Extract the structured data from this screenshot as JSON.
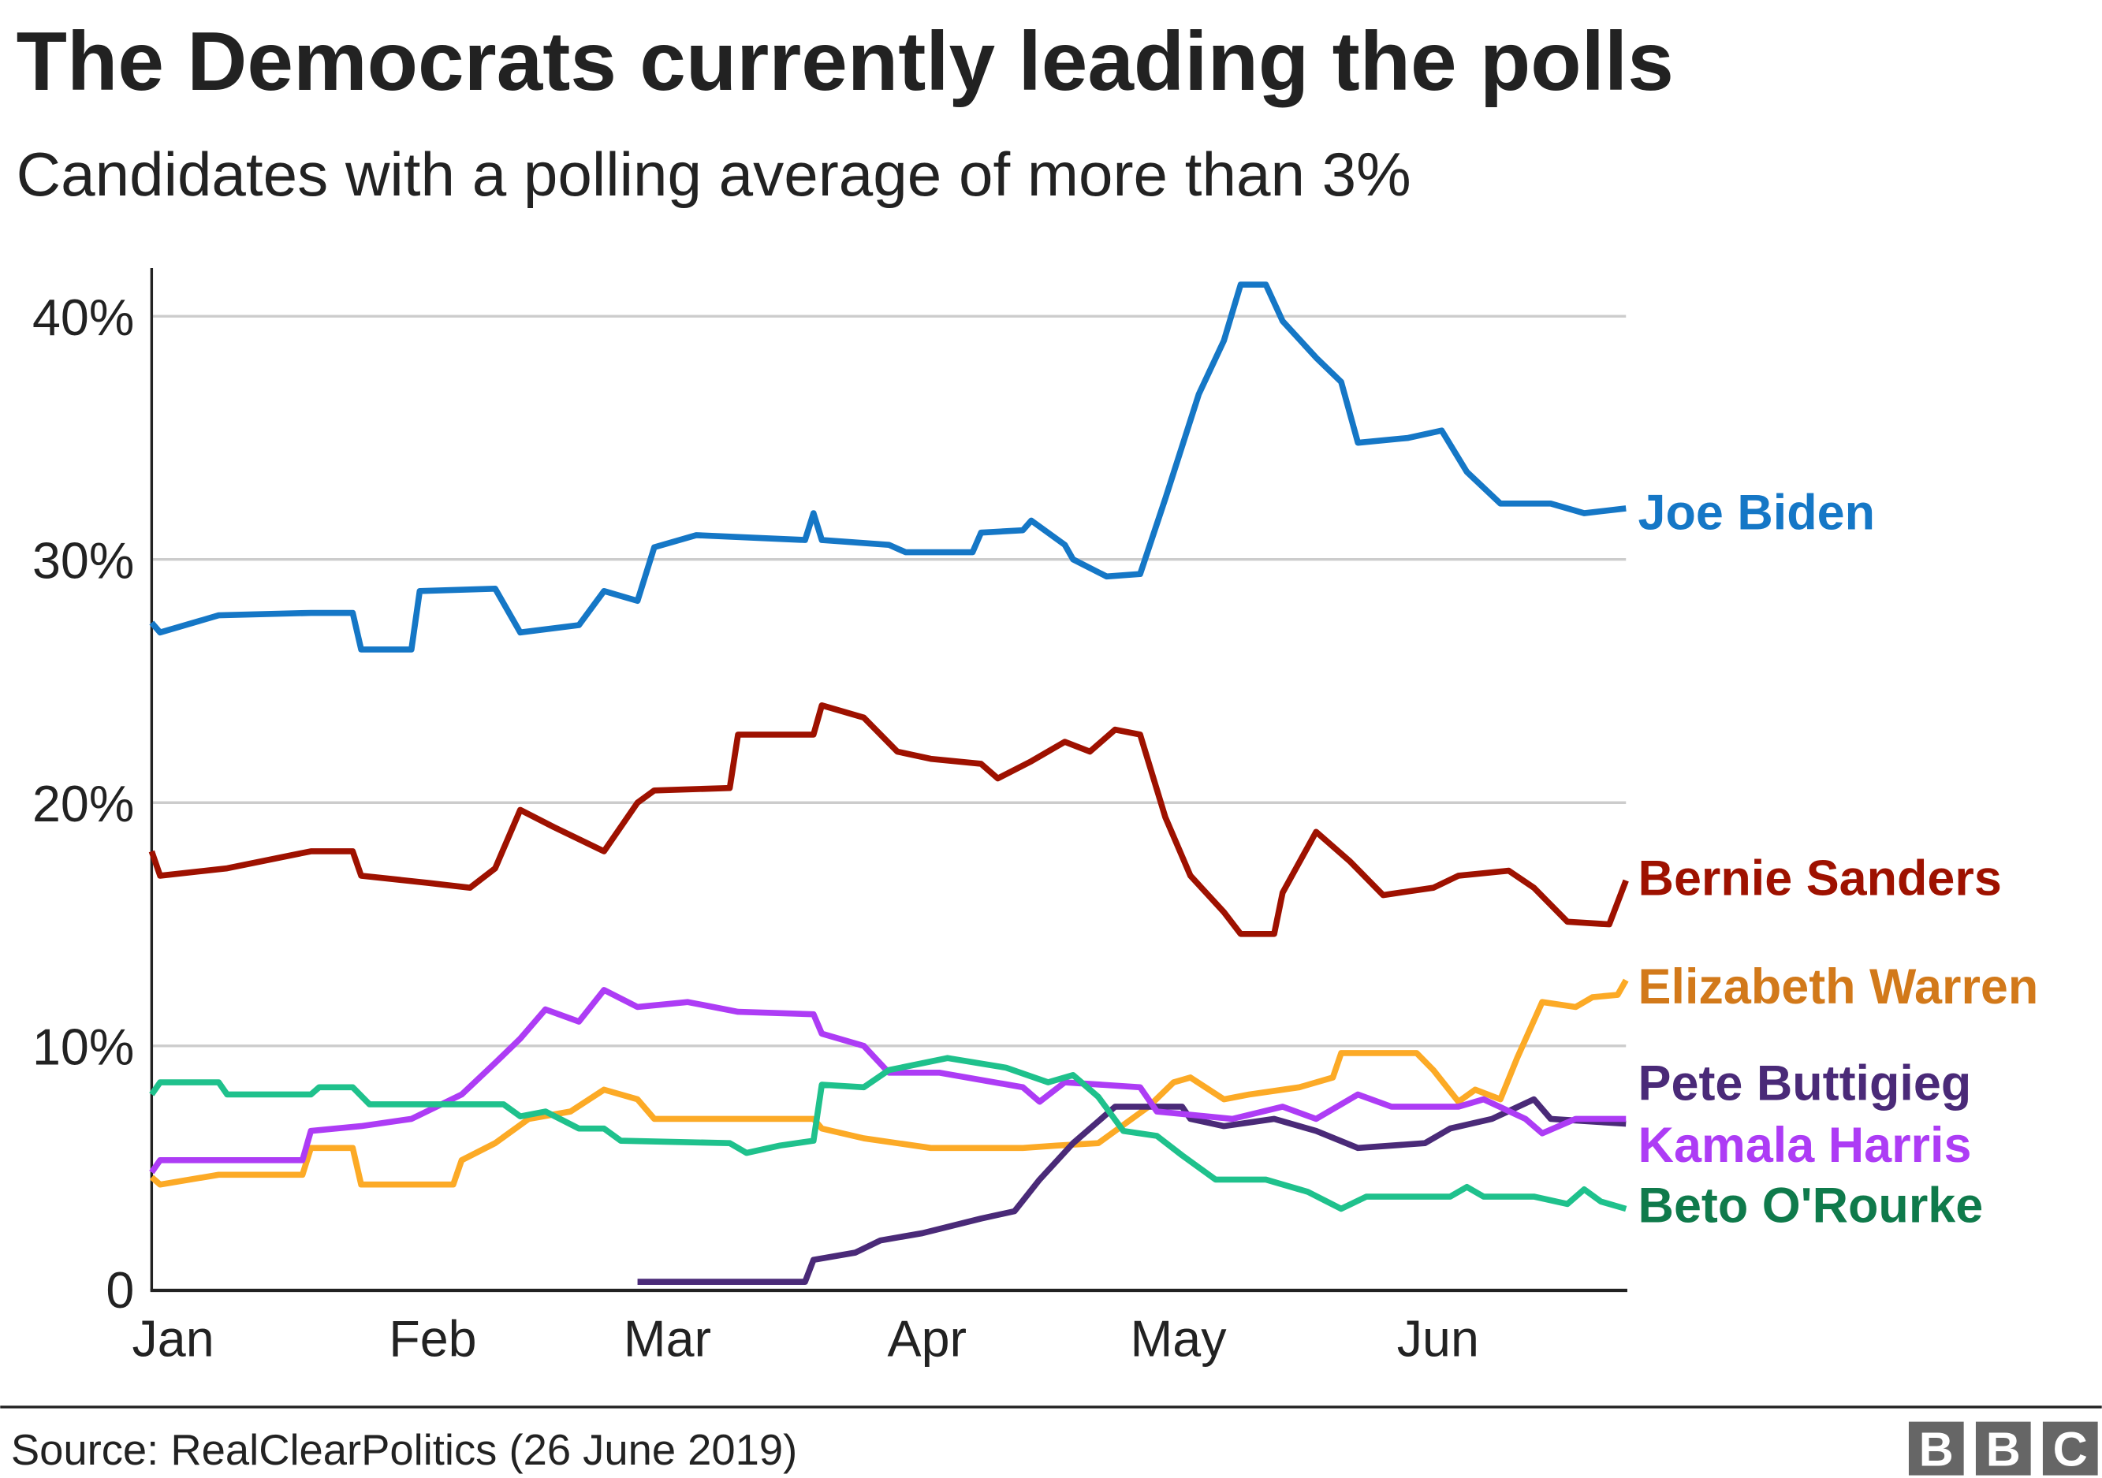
{
  "chart_data": {
    "type": "line",
    "title": "The Democrats currently leading the polls",
    "subtitle": "Candidates with a polling average of more than 3%",
    "source": "Source: RealClearPolitics (26 June 2019)",
    "logo": "BBC",
    "xlabel": "",
    "ylabel": "",
    "xlim": [
      "2019-01-01",
      "2019-06-26"
    ],
    "ylim": [
      0,
      42
    ],
    "yticks": [
      0,
      10,
      20,
      30,
      40
    ],
    "ytick_labels": [
      "0",
      "10%",
      "20%",
      "30%",
      "40%"
    ],
    "xticks": [
      "2019-01-01",
      "2019-02-01",
      "2019-03-01",
      "2019-04-01",
      "2019-05-01",
      "2019-06-01"
    ],
    "xtick_labels": [
      "Jan",
      "Feb",
      "Mar",
      "Apr",
      "May",
      "Jun"
    ],
    "grid": "horizontal",
    "legend": "direct labels at right end of lines",
    "series": [
      {
        "name": "Joe Biden",
        "color": "#1577c6",
        "label_color": "#1577c6",
        "x": [
          "2019-01-01",
          "2019-01-02",
          "2019-01-09",
          "2019-01-20",
          "2019-01-25",
          "2019-01-26",
          "2019-02-01",
          "2019-02-02",
          "2019-02-11",
          "2019-02-14",
          "2019-02-21",
          "2019-02-24",
          "2019-02-28",
          "2019-03-02",
          "2019-03-07",
          "2019-03-20",
          "2019-03-21",
          "2019-03-22",
          "2019-03-30",
          "2019-04-01",
          "2019-04-09",
          "2019-04-10",
          "2019-04-15",
          "2019-04-16",
          "2019-04-20",
          "2019-04-21",
          "2019-04-25",
          "2019-04-29",
          "2019-05-02",
          "2019-05-06",
          "2019-05-09",
          "2019-05-11",
          "2019-05-14",
          "2019-05-16",
          "2019-05-20",
          "2019-05-23",
          "2019-05-25",
          "2019-05-31",
          "2019-06-04",
          "2019-06-07",
          "2019-06-11",
          "2019-06-17",
          "2019-06-21",
          "2019-06-26"
        ],
        "y": [
          27.4,
          27.0,
          27.7,
          27.8,
          27.8,
          26.3,
          26.3,
          28.7,
          28.8,
          27.0,
          27.3,
          28.7,
          28.3,
          30.5,
          31.0,
          30.8,
          31.9,
          30.8,
          30.6,
          30.3,
          30.3,
          31.1,
          31.2,
          31.6,
          30.6,
          30.0,
          29.3,
          29.4,
          32.5,
          36.8,
          39.0,
          41.3,
          41.3,
          39.8,
          38.3,
          37.3,
          34.8,
          35.0,
          35.3,
          33.6,
          32.3,
          32.3,
          31.9,
          32.1
        ]
      },
      {
        "name": "Bernie Sanders",
        "color": "#9e1100",
        "label_color": "#9e1100",
        "x": [
          "2019-01-01",
          "2019-01-02",
          "2019-01-10",
          "2019-01-20",
          "2019-01-25",
          "2019-01-26",
          "2019-02-03",
          "2019-02-08",
          "2019-02-11",
          "2019-02-14",
          "2019-02-18",
          "2019-02-24",
          "2019-02-28",
          "2019-03-02",
          "2019-03-11",
          "2019-03-12",
          "2019-03-21",
          "2019-03-22",
          "2019-03-27",
          "2019-03-31",
          "2019-04-04",
          "2019-04-10",
          "2019-04-12",
          "2019-04-16",
          "2019-04-20",
          "2019-04-23",
          "2019-04-26",
          "2019-04-29",
          "2019-05-02",
          "2019-05-05",
          "2019-05-09",
          "2019-05-11",
          "2019-05-15",
          "2019-05-16",
          "2019-05-20",
          "2019-05-24",
          "2019-05-28",
          "2019-06-03",
          "2019-06-06",
          "2019-06-12",
          "2019-06-15",
          "2019-06-19",
          "2019-06-24",
          "2019-06-26"
        ],
        "y": [
          18.0,
          17.0,
          17.3,
          18.0,
          18.0,
          17.0,
          16.7,
          16.5,
          17.3,
          19.7,
          19.0,
          18.0,
          20.0,
          20.5,
          20.6,
          22.8,
          22.8,
          24.0,
          23.5,
          22.1,
          21.8,
          21.6,
          21.0,
          21.7,
          22.5,
          22.1,
          23.0,
          22.8,
          19.4,
          17.0,
          15.5,
          14.6,
          14.6,
          16.3,
          18.8,
          17.6,
          16.2,
          16.5,
          17.0,
          17.2,
          16.5,
          15.1,
          15.0,
          16.8
        ]
      },
      {
        "name": "Elizabeth Warren",
        "color": "#fcaa26",
        "label_color": "#d2791a",
        "x": [
          "2019-01-01",
          "2019-01-02",
          "2019-01-09",
          "2019-01-19",
          "2019-01-20",
          "2019-01-25",
          "2019-01-26",
          "2019-02-06",
          "2019-02-07",
          "2019-02-11",
          "2019-02-15",
          "2019-02-20",
          "2019-02-24",
          "2019-02-28",
          "2019-03-02",
          "2019-03-21",
          "2019-03-22",
          "2019-03-27",
          "2019-04-04",
          "2019-04-15",
          "2019-04-19",
          "2019-04-24",
          "2019-04-30",
          "2019-05-03",
          "2019-05-05",
          "2019-05-09",
          "2019-05-12",
          "2019-05-18",
          "2019-05-22",
          "2019-05-23",
          "2019-06-01",
          "2019-06-03",
          "2019-06-06",
          "2019-06-08",
          "2019-06-11",
          "2019-06-13",
          "2019-06-16",
          "2019-06-20",
          "2019-06-22",
          "2019-06-25",
          "2019-06-26"
        ],
        "y": [
          4.6,
          4.3,
          4.7,
          4.7,
          5.8,
          5.8,
          4.3,
          4.3,
          5.3,
          6.0,
          7.0,
          7.3,
          8.2,
          7.8,
          7.0,
          7.0,
          6.6,
          6.2,
          5.8,
          5.8,
          5.9,
          6.0,
          7.5,
          8.5,
          8.7,
          7.8,
          8.0,
          8.3,
          8.7,
          9.7,
          9.7,
          9.0,
          7.7,
          8.2,
          7.8,
          9.5,
          11.8,
          11.6,
          12.0,
          12.1,
          12.7
        ]
      },
      {
        "name": "Pete Buttigieg",
        "color": "#4a2a78",
        "label_color": "#4a2a78",
        "x": [
          "2019-02-28",
          "2019-03-20",
          "2019-03-21",
          "2019-03-26",
          "2019-03-29",
          "2019-04-03",
          "2019-04-10",
          "2019-04-14",
          "2019-04-17",
          "2019-04-21",
          "2019-04-24",
          "2019-04-26",
          "2019-04-29",
          "2019-05-04",
          "2019-05-05",
          "2019-05-09",
          "2019-05-15",
          "2019-05-20",
          "2019-05-25",
          "2019-06-02",
          "2019-06-05",
          "2019-06-10",
          "2019-06-15",
          "2019-06-17",
          "2019-06-26"
        ],
        "y": [
          0.3,
          0.3,
          1.2,
          1.5,
          2.0,
          2.3,
          2.9,
          3.2,
          4.5,
          6.0,
          6.9,
          7.5,
          7.5,
          7.5,
          7.0,
          6.7,
          7.0,
          6.5,
          5.8,
          6.0,
          6.6,
          7.0,
          7.8,
          7.0,
          6.8
        ]
      },
      {
        "name": "Kamala Harris",
        "color": "#ad3cf5",
        "label_color": "#ad3cf5",
        "x": [
          "2019-01-01",
          "2019-01-02",
          "2019-01-19",
          "2019-01-20",
          "2019-01-26",
          "2019-02-01",
          "2019-02-07",
          "2019-02-11",
          "2019-02-14",
          "2019-02-17",
          "2019-02-21",
          "2019-02-24",
          "2019-02-28",
          "2019-03-06",
          "2019-03-12",
          "2019-03-21",
          "2019-03-22",
          "2019-03-27",
          "2019-03-30",
          "2019-04-05",
          "2019-04-15",
          "2019-04-17",
          "2019-04-20",
          "2019-04-29",
          "2019-05-01",
          "2019-05-10",
          "2019-05-16",
          "2019-05-20",
          "2019-05-25",
          "2019-05-29",
          "2019-06-06",
          "2019-06-09",
          "2019-06-14",
          "2019-06-16",
          "2019-06-20",
          "2019-06-26"
        ],
        "y": [
          4.8,
          5.3,
          5.3,
          6.5,
          6.7,
          7.0,
          8.0,
          9.3,
          10.3,
          11.5,
          11.0,
          12.3,
          11.6,
          11.8,
          11.4,
          11.3,
          10.5,
          10.0,
          8.9,
          8.9,
          8.3,
          7.7,
          8.5,
          8.3,
          7.3,
          7.0,
          7.5,
          7.0,
          8.0,
          7.5,
          7.5,
          7.8,
          7.0,
          6.4,
          7.0,
          7.0
        ]
      },
      {
        "name": "Beto O'Rourke",
        "color": "#1fc18c",
        "label_color": "#0f7a4b",
        "x": [
          "2019-01-01",
          "2019-01-02",
          "2019-01-09",
          "2019-01-10",
          "2019-01-20",
          "2019-01-21",
          "2019-01-25",
          "2019-01-27",
          "2019-02-12",
          "2019-02-14",
          "2019-02-17",
          "2019-02-21",
          "2019-02-24",
          "2019-02-26",
          "2019-03-11",
          "2019-03-13",
          "2019-03-17",
          "2019-03-21",
          "2019-03-22",
          "2019-03-27",
          "2019-03-30",
          "2019-04-06",
          "2019-04-13",
          "2019-04-18",
          "2019-04-21",
          "2019-04-24",
          "2019-04-27",
          "2019-05-01",
          "2019-05-04",
          "2019-05-08",
          "2019-05-14",
          "2019-05-19",
          "2019-05-23",
          "2019-05-26",
          "2019-06-05",
          "2019-06-07",
          "2019-06-09",
          "2019-06-15",
          "2019-06-19",
          "2019-06-21",
          "2019-06-23",
          "2019-06-26"
        ],
        "y": [
          8.0,
          8.5,
          8.5,
          8.0,
          8.0,
          8.3,
          8.3,
          7.6,
          7.6,
          7.1,
          7.3,
          6.6,
          6.6,
          6.1,
          6.0,
          5.6,
          5.9,
          6.1,
          8.4,
          8.3,
          9.0,
          9.5,
          9.1,
          8.5,
          8.8,
          7.9,
          6.5,
          6.3,
          5.5,
          4.5,
          4.5,
          4.0,
          3.3,
          3.8,
          3.8,
          4.2,
          3.8,
          3.8,
          3.5,
          4.1,
          3.6,
          3.3
        ]
      }
    ]
  }
}
